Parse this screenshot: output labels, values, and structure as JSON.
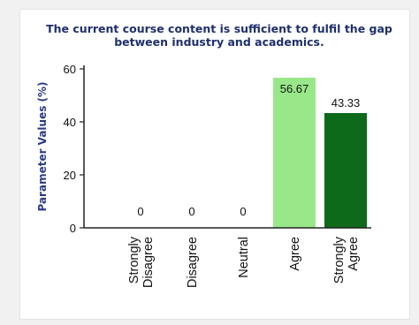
{
  "chart_data": {
    "type": "bar",
    "title": [
      "The current course content is sufficient to fulfil the gap",
      "between industry and academics."
    ],
    "ylabel": "Parameter Values (%)",
    "xlabel": "",
    "categories": [
      [
        "Strongly",
        "Disagree"
      ],
      [
        "Disagree"
      ],
      [
        "Neutral"
      ],
      [
        "Agree"
      ],
      [
        "Strongly",
        "Agree"
      ]
    ],
    "values": [
      0,
      0,
      0,
      56.67,
      43.33
    ],
    "value_labels": [
      "0",
      "0",
      "0",
      "56.67",
      "43.33"
    ],
    "bar_colors": [
      "#9de88c",
      "#9de88c",
      "#9de88c",
      "#98e88a",
      "#0d6a1a"
    ],
    "ylim": [
      0,
      60
    ],
    "yticks": [
      0,
      20,
      40,
      60
    ],
    "grid": false,
    "legend": "none"
  }
}
